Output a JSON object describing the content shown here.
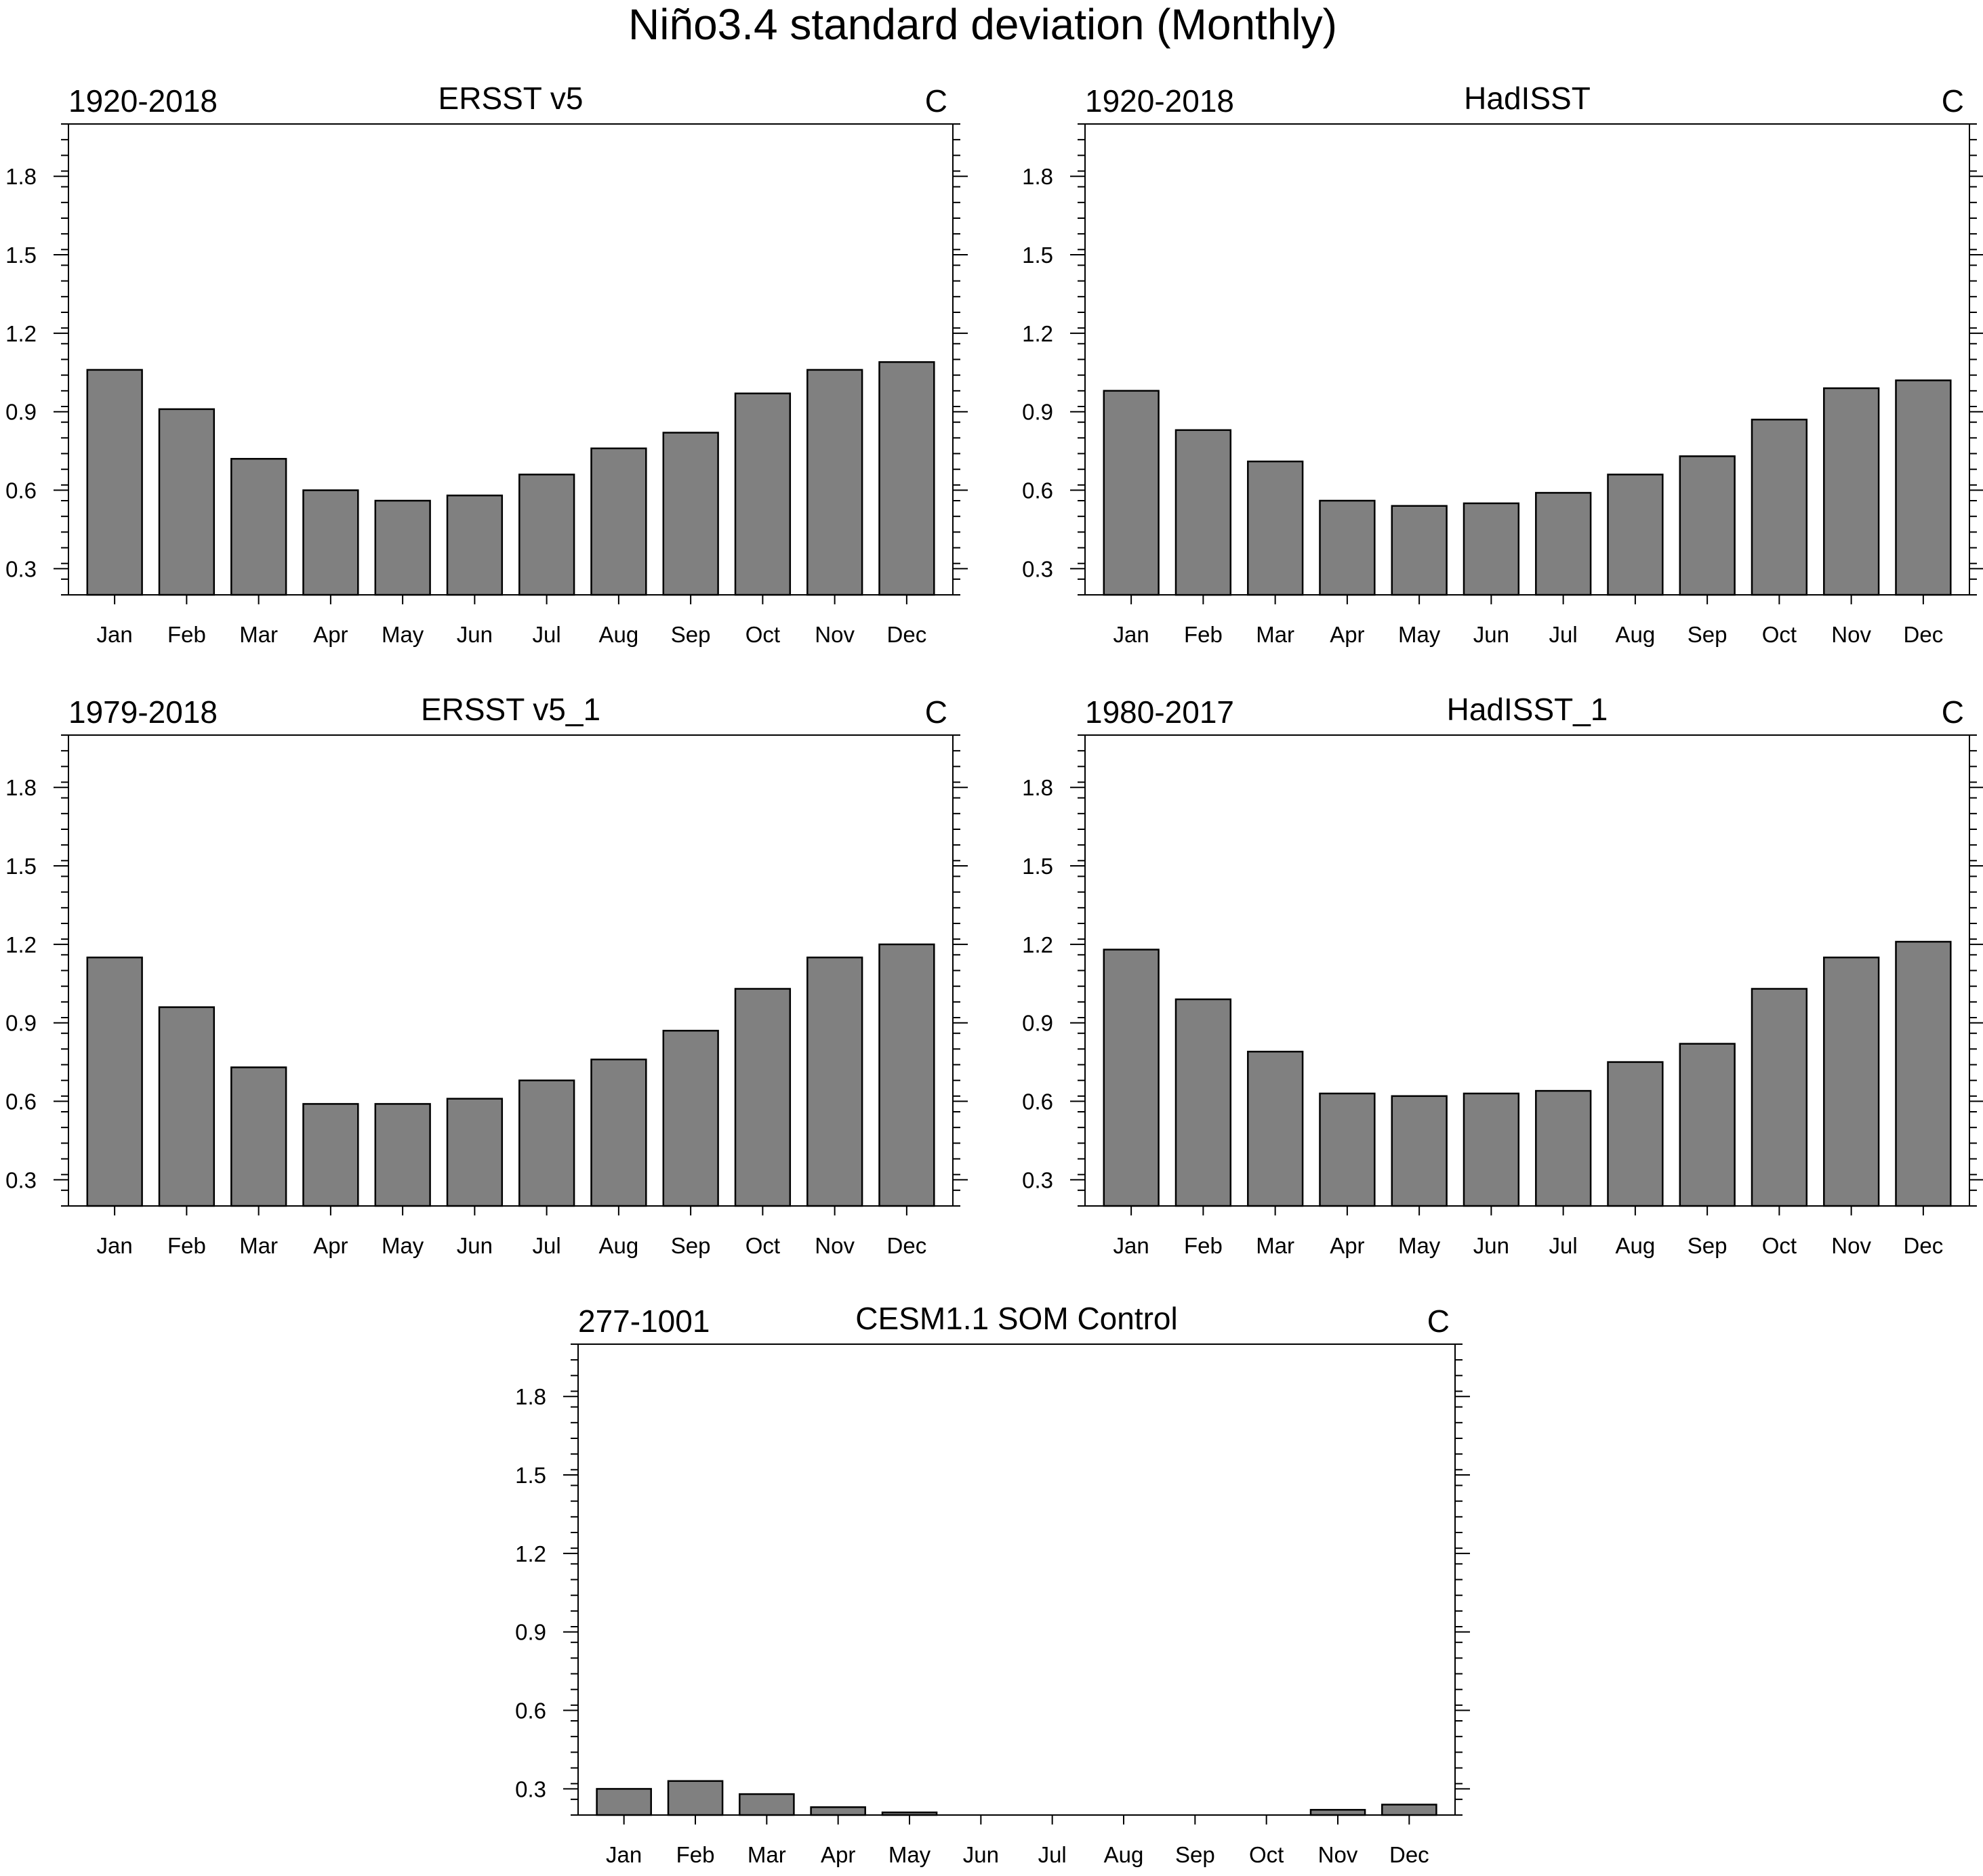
{
  "chart_data": {
    "title": "Niño3.4 standard deviation (Monthly)",
    "months": [
      "Jan",
      "Feb",
      "Mar",
      "Apr",
      "May",
      "Jun",
      "Jul",
      "Aug",
      "Sep",
      "Oct",
      "Nov",
      "Dec"
    ],
    "yticks": [
      "0.3",
      "0.6",
      "0.9",
      "1.2",
      "1.5",
      "1.8"
    ],
    "panels": [
      {
        "type": "bar",
        "title": "ERSST v5",
        "period": "1920-2018",
        "units": "C",
        "ylim": [
          0.2,
          2.0
        ],
        "values": [
          1.06,
          0.91,
          0.72,
          0.6,
          0.56,
          0.58,
          0.66,
          0.76,
          0.82,
          0.97,
          1.06,
          1.09
        ]
      },
      {
        "type": "bar",
        "title": "HadISST",
        "period": "1920-2018",
        "units": "C",
        "ylim": [
          0.2,
          2.0
        ],
        "values": [
          0.98,
          0.83,
          0.71,
          0.56,
          0.54,
          0.55,
          0.59,
          0.66,
          0.73,
          0.87,
          0.99,
          1.02
        ]
      },
      {
        "type": "bar",
        "title": "ERSST v5_1",
        "period": "1979-2018",
        "units": "C",
        "ylim": [
          0.2,
          2.0
        ],
        "values": [
          1.15,
          0.96,
          0.73,
          0.59,
          0.59,
          0.61,
          0.68,
          0.76,
          0.87,
          1.03,
          1.15,
          1.2
        ]
      },
      {
        "type": "bar",
        "title": "HadISST_1",
        "period": "1980-2017",
        "units": "C",
        "ylim": [
          0.2,
          2.0
        ],
        "values": [
          1.18,
          0.99,
          0.79,
          0.63,
          0.62,
          0.63,
          0.64,
          0.75,
          0.82,
          1.03,
          1.15,
          1.21
        ]
      },
      {
        "type": "bar",
        "title": "CESM1.1 SOM Control",
        "period": "277-1001",
        "units": "C",
        "ylim": [
          0.2,
          2.0
        ],
        "values": [
          0.3,
          0.33,
          0.28,
          0.23,
          0.21,
          0.19,
          0.19,
          0.19,
          0.19,
          0.19,
          0.22,
          0.24
        ]
      }
    ]
  }
}
